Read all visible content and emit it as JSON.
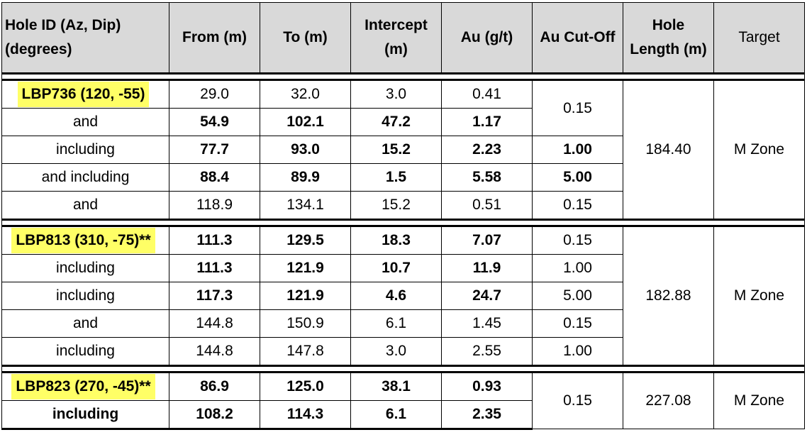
{
  "headers": {
    "hole_id": "Hole ID (Az, Dip) (degrees)",
    "from": "From (m)",
    "to": "To (m)",
    "intercept": "Intercept (m)",
    "au": "Au (g/t)",
    "cutoff": "Au Cut-Off",
    "hole_length": "Hole Length (m)",
    "target": "Target"
  },
  "groups": [
    {
      "hole_id": "LBP736 (120, -55)",
      "hole_length": "184.40",
      "target": "M Zone",
      "rows": [
        {
          "label": "LBP736 (120, -55)",
          "from": "29.0",
          "to": "32.0",
          "intercept": "3.0",
          "au": "0.41",
          "cutoff": "0.15",
          "bold": false
        },
        {
          "label": "and",
          "from": "54.9",
          "to": "102.1",
          "intercept": "47.2",
          "au": "1.17",
          "cutoff": "",
          "bold": true
        },
        {
          "label": "including",
          "from": "77.7",
          "to": "93.0",
          "intercept": "15.2",
          "au": "2.23",
          "cutoff": "1.00",
          "bold": true
        },
        {
          "label": "and including",
          "from": "88.4",
          "to": "89.9",
          "intercept": "1.5",
          "au": "5.58",
          "cutoff": "5.00",
          "bold": true
        },
        {
          "label": "and",
          "from": "118.9",
          "to": "134.1",
          "intercept": "15.2",
          "au": "0.51",
          "cutoff": "0.15",
          "bold": false
        }
      ]
    },
    {
      "hole_id": "LBP813 (310, -75)**",
      "hole_length": "182.88",
      "target": "M Zone",
      "rows": [
        {
          "label": "LBP813 (310, -75)**",
          "from": "111.3",
          "to": "129.5",
          "intercept": "18.3",
          "au": "7.07",
          "cutoff": "0.15",
          "bold": true
        },
        {
          "label": "including",
          "from": "111.3",
          "to": "121.9",
          "intercept": "10.7",
          "au": "11.9",
          "cutoff": "1.00",
          "bold": true
        },
        {
          "label": "including",
          "from": "117.3",
          "to": "121.9",
          "intercept": "4.6",
          "au": "24.7",
          "cutoff": "5.00",
          "bold": true
        },
        {
          "label": "and",
          "from": "144.8",
          "to": "150.9",
          "intercept": "6.1",
          "au": "1.45",
          "cutoff": "0.15",
          "bold": false
        },
        {
          "label": "including",
          "from": "144.8",
          "to": "147.8",
          "intercept": "3.0",
          "au": "2.55",
          "cutoff": "1.00",
          "bold": false
        }
      ]
    },
    {
      "hole_id": "LBP823 (270, -45)**",
      "hole_length": "227.08",
      "target": "M Zone",
      "cutoff": "0.15",
      "rows": [
        {
          "label": "LBP823 (270, -45)**",
          "from": "86.9",
          "to": "125.0",
          "intercept": "38.1",
          "au": "0.93",
          "bold": true
        },
        {
          "label": "including",
          "from": "108.2",
          "to": "114.3",
          "intercept": "6.1",
          "au": "2.35",
          "bold": true
        }
      ]
    }
  ],
  "colors": {
    "header_bg": "#d9d9d9",
    "highlight": "#ffff66"
  }
}
